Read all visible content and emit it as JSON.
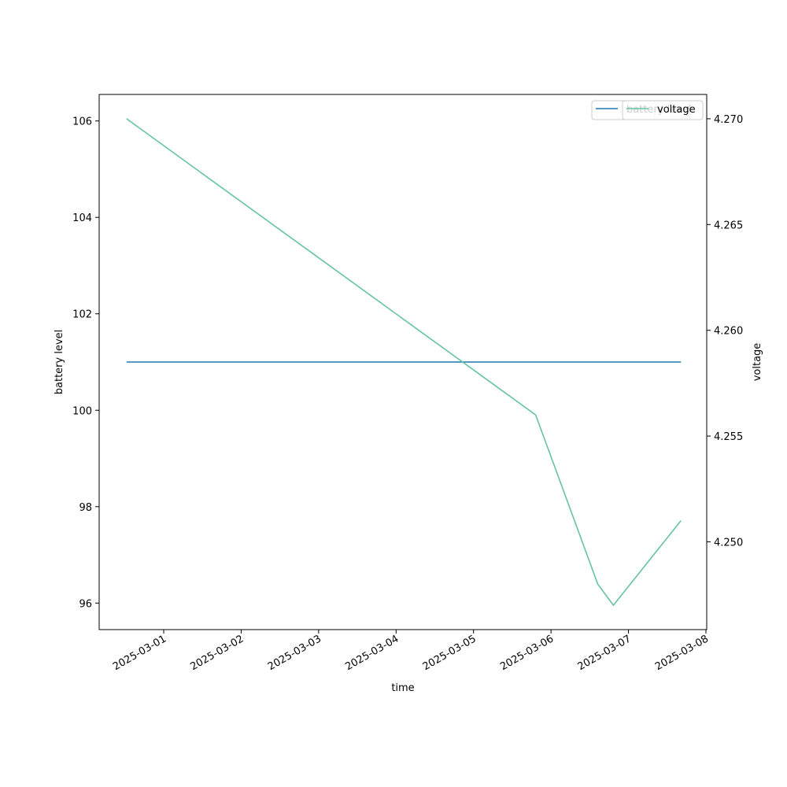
{
  "chart_data": {
    "type": "line",
    "xlabel": "time",
    "ylabel": "battery level",
    "y2label": "voltage",
    "x": [
      "2025-02-28T12:30",
      "2025-03-05T19:15",
      "2025-03-06T14:30",
      "2025-03-06T19:20",
      "2025-03-07T16:15"
    ],
    "series": [
      {
        "name": "battery level",
        "color": "#1f77b4",
        "values": [
          101,
          101,
          101,
          101,
          101
        ]
      },
      {
        "name": "voltage",
        "color": "#66c2a5",
        "axis": "y2",
        "values": [
          4.27,
          4.256,
          4.248,
          4.247,
          4.251
        ]
      }
    ],
    "xlim": [
      "2025-02-28T04:00",
      "2025-03-08T00:15"
    ],
    "xticks": [
      "2025-03-01",
      "2025-03-02",
      "2025-03-03",
      "2025-03-04",
      "2025-03-05",
      "2025-03-06",
      "2025-03-07",
      "2025-03-08"
    ],
    "ylim": [
      95.45,
      106.55
    ],
    "yticks": [
      96,
      98,
      100,
      102,
      104,
      106
    ],
    "y2lim": [
      4.24585,
      4.27115
    ],
    "y2ticks": [
      {
        "value": 4.25,
        "label": "4.250"
      },
      4.255,
      {
        "value": 4.26,
        "label": "4.260"
      },
      4.265,
      {
        "value": 4.27,
        "label": "4.270"
      }
    ],
    "legend": "upper right"
  }
}
